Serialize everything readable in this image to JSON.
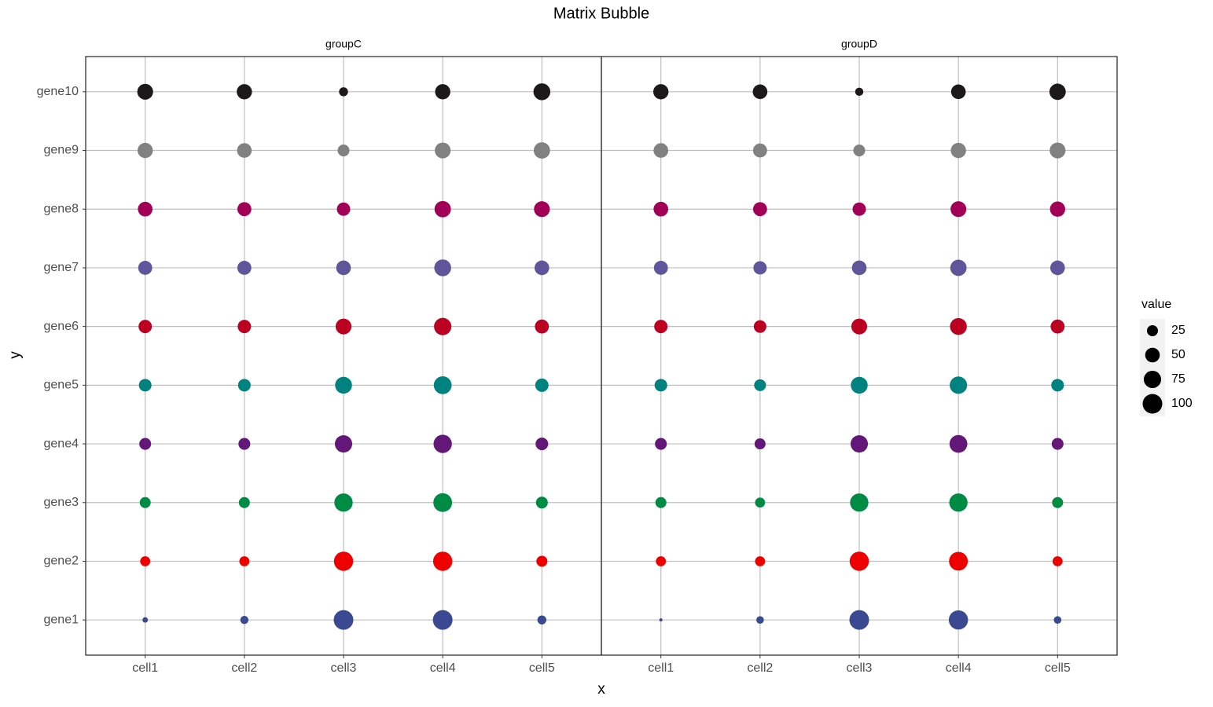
{
  "chart_data": {
    "type": "bubble",
    "title": "Matrix Bubble",
    "x_label": "x",
    "y_label": "y",
    "categories": [
      "cell1",
      "cell2",
      "cell3",
      "cell4",
      "cell5"
    ],
    "y_categories": [
      "gene1",
      "gene2",
      "gene3",
      "gene4",
      "gene5",
      "gene6",
      "gene7",
      "gene8",
      "gene9",
      "gene10"
    ],
    "colors": [
      "#3B4992",
      "#EE0000",
      "#008B45",
      "#631879",
      "#008280",
      "#BB0021",
      "#5F559B",
      "#A20056",
      "#808180",
      "#1B1919"
    ],
    "facets": [
      {
        "label": "groupC",
        "values": [
          [
            5,
            12,
            100,
            100,
            15
          ],
          [
            20,
            20,
            95,
            95,
            25
          ],
          [
            25,
            25,
            85,
            90,
            30
          ],
          [
            30,
            30,
            75,
            85,
            35
          ],
          [
            35,
            35,
            70,
            80,
            40
          ],
          [
            40,
            40,
            60,
            75,
            45
          ],
          [
            45,
            45,
            50,
            70,
            50
          ],
          [
            50,
            45,
            40,
            65,
            60
          ],
          [
            55,
            50,
            30,
            60,
            65
          ],
          [
            60,
            55,
            15,
            55,
            70
          ]
        ]
      },
      {
        "label": "groupD",
        "values": [
          [
            3,
            10,
            100,
            95,
            10
          ],
          [
            20,
            20,
            95,
            90,
            20
          ],
          [
            25,
            20,
            85,
            85,
            25
          ],
          [
            30,
            25,
            75,
            80,
            30
          ],
          [
            35,
            30,
            70,
            75,
            35
          ],
          [
            40,
            35,
            60,
            70,
            45
          ],
          [
            45,
            40,
            50,
            65,
            50
          ],
          [
            50,
            45,
            40,
            60,
            55
          ],
          [
            50,
            45,
            30,
            55,
            60
          ],
          [
            55,
            50,
            12,
            50,
            65
          ]
        ]
      }
    ],
    "grid": true,
    "legend": {
      "title": "value",
      "sizes": [
        25,
        50,
        75,
        100
      ],
      "position": "right"
    }
  }
}
